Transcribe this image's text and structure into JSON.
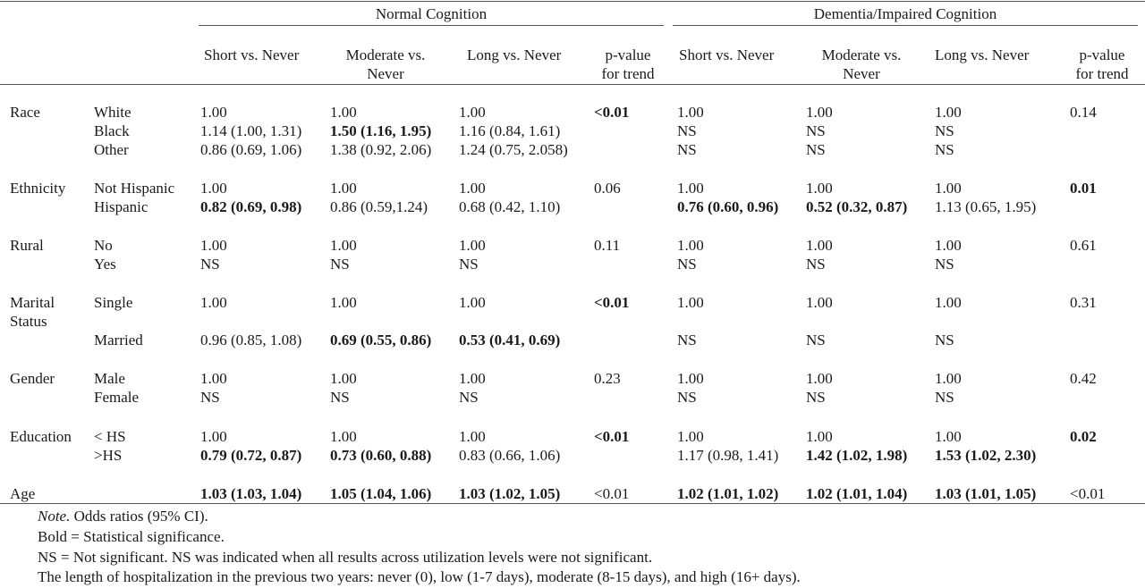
{
  "group_headers": {
    "normal": "Normal Cognition",
    "dementia": "Dementia/Impaired Cognition"
  },
  "column_headers": {
    "n_short": "Short vs. Never",
    "n_moderate_1": "Moderate vs.",
    "n_moderate_2": "Never",
    "n_long": "Long vs. Never",
    "n_p_1": "p-value",
    "n_p_2": "for trend",
    "d_short": "Short  vs. Never",
    "d_moderate_1": "Moderate vs.",
    "d_moderate_2": "Never",
    "d_long": "Long vs. Never",
    "d_p_1": "p-value",
    "d_p_2": "for trend"
  },
  "variables": [
    {
      "label": "Race",
      "label2": ""
    },
    {
      "label": "Ethnicity",
      "label2": ""
    },
    {
      "label": "Rural",
      "label2": ""
    },
    {
      "label": "Marital",
      "label2": "Status"
    },
    {
      "label": "Gender",
      "label2": ""
    },
    {
      "label": "Education",
      "label2": ""
    },
    {
      "label": "Age",
      "label2": ""
    }
  ],
  "rows": [
    {
      "cat": "White",
      "n_short": "1.00",
      "n_mod": "1.00",
      "n_long": "1.00",
      "n_p": "<0.01",
      "d_short": "1.00",
      "d_mod": "1.00",
      "d_long": "1.00",
      "d_p": "0.14"
    },
    {
      "cat": "Black",
      "n_short": "1.14 (1.00, 1.31)",
      "n_mod": "1.50 (1.16, 1.95)",
      "n_long": "1.16 (0.84, 1.61)",
      "n_p": "",
      "d_short": "NS",
      "d_mod": "NS",
      "d_long": "NS",
      "d_p": ""
    },
    {
      "cat": "Other",
      "n_short": "0.86 (0.69, 1.06)",
      "n_mod": "1.38 (0.92, 2.06)",
      "n_long": "1.24 (0.75, 2.058)",
      "n_p": "",
      "d_short": "NS",
      "d_mod": "NS",
      "d_long": "NS",
      "d_p": ""
    },
    {
      "cat": "Not Hispanic",
      "n_short": "1.00",
      "n_mod": "1.00",
      "n_long": "1.00",
      "n_p": "0.06",
      "d_short": "1.00",
      "d_mod": "1.00",
      "d_long": "1.00",
      "d_p": "0.01"
    },
    {
      "cat": "Hispanic",
      "n_short": "0.82 (0.69, 0.98)",
      "n_mod": "0.86 (0.59,1.24)",
      "n_long": "0.68 (0.42, 1.10)",
      "n_p": "",
      "d_short": "0.76 (0.60, 0.96)",
      "d_mod": "0.52 (0.32, 0.87)",
      "d_long": "1.13 (0.65, 1.95)",
      "d_p": ""
    },
    {
      "cat": "No",
      "n_short": "1.00",
      "n_mod": "1.00",
      "n_long": "1.00",
      "n_p": "0.11",
      "d_short": "1.00",
      "d_mod": "1.00",
      "d_long": "1.00",
      "d_p": "0.61"
    },
    {
      "cat": "Yes",
      "n_short": "NS",
      "n_mod": "NS",
      "n_long": "NS",
      "n_p": "",
      "d_short": "NS",
      "d_mod": "NS",
      "d_long": "NS",
      "d_p": ""
    },
    {
      "cat": "Single",
      "n_short": "1.00",
      "n_mod": "1.00",
      "n_long": "1.00",
      "n_p": "<0.01",
      "d_short": "1.00",
      "d_mod": "1.00",
      "d_long": "1.00",
      "d_p": "0.31"
    },
    {
      "cat": "Married",
      "n_short": "0.96 (0.85, 1.08)",
      "n_mod": "0.69 (0.55, 0.86)",
      "n_long": "0.53 (0.41, 0.69)",
      "n_p": "",
      "d_short": "NS",
      "d_mod": "NS",
      "d_long": "NS",
      "d_p": ""
    },
    {
      "cat": "Male",
      "n_short": "1.00",
      "n_mod": "1.00",
      "n_long": "1.00",
      "n_p": "0.23",
      "d_short": "1.00",
      "d_mod": "1.00",
      "d_long": "1.00",
      "d_p": "0.42"
    },
    {
      "cat": "Female",
      "n_short": "NS",
      "n_mod": "NS",
      "n_long": "NS",
      "n_p": "",
      "d_short": "NS",
      "d_mod": "NS",
      "d_long": "NS",
      "d_p": ""
    },
    {
      "cat": "< HS",
      "n_short": "1.00",
      "n_mod": "1.00",
      "n_long": "1.00",
      "n_p": "<0.01",
      "d_short": "1.00",
      "d_mod": "1.00",
      "d_long": "1.00",
      "d_p": "0.02"
    },
    {
      "cat": ">HS",
      "n_short": "0.79 (0.72, 0.87)",
      "n_mod": "0.73 (0.60, 0.88)",
      "n_long": "0.83 (0.66, 1.06)",
      "n_p": "",
      "d_short": "1.17 (0.98, 1.41)",
      "d_mod": "1.42 (1.02, 1.98)",
      "d_long": "1.53 (1.02, 2.30)",
      "d_p": ""
    },
    {
      "cat": "",
      "n_short": "1.03 (1.03, 1.04)",
      "n_mod": "1.05 (1.04, 1.06)",
      "n_long": "1.03 (1.02, 1.05)",
      "n_p": "<0.01",
      "d_short": "1.02 (1.01, 1.02)",
      "d_mod": "1.02 (1.01, 1.04)",
      "d_long": "1.03 (1.01, 1.05)",
      "d_p": "<0.01"
    }
  ],
  "bold_cells": [
    "1.n_mod",
    "0.n_p",
    "3.d_p",
    "4.n_short",
    "4.d_short",
    "4.d_mod",
    "7.n_p",
    "8.n_mod",
    "8.n_long",
    "11.n_p",
    "11.d_p",
    "12.n_short",
    "12.n_mod",
    "12.d_mod",
    "12.d_long",
    "13.n_short",
    "13.n_mod",
    "13.n_long",
    "13.d_short",
    "13.d_mod",
    "13.d_long"
  ],
  "notes": {
    "note_label": "Note.",
    "note_text": " Odds ratios (95% CI).",
    "bold": "Bold = Statistical significance.",
    "ns": "NS = Not significant. NS was indicated when all results across utilization levels were not significant.",
    "length": "The length of hospitalization in the previous two years: never (0), low (1-7 days), moderate (8-15 days), and high (16+ days)."
  }
}
